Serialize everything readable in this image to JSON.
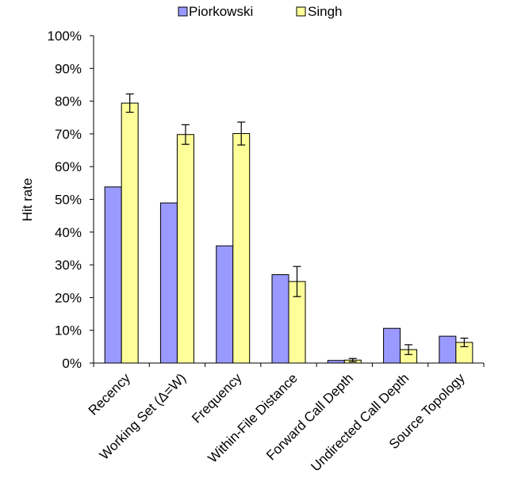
{
  "chart_data": {
    "type": "bar",
    "title": "",
    "xlabel": "",
    "ylabel": "Hit rate",
    "ylim": [
      0,
      100
    ],
    "yticks": [
      "0%",
      "10%",
      "20%",
      "30%",
      "40%",
      "50%",
      "60%",
      "70%",
      "80%",
      "90%",
      "100%"
    ],
    "grid": false,
    "legend_position": "top",
    "categories": [
      "Recency",
      "Working Set (Δ=W)",
      "Frequency",
      "Within-File Distance",
      "Forward Call Depth",
      "Undirected Call Depth",
      "Source Topology"
    ],
    "series": [
      {
        "name": "Piorkowski",
        "color": "#9999ff",
        "values": [
          53.8,
          48.9,
          35.8,
          27.0,
          0.8,
          10.6,
          8.2
        ]
      },
      {
        "name": "Singh",
        "color": "#ffff99",
        "values": [
          79.4,
          69.8,
          70.1,
          24.9,
          0.9,
          4.1,
          6.3
        ],
        "error": [
          2.8,
          3.0,
          3.5,
          4.6,
          0.5,
          1.5,
          1.3
        ]
      }
    ]
  }
}
